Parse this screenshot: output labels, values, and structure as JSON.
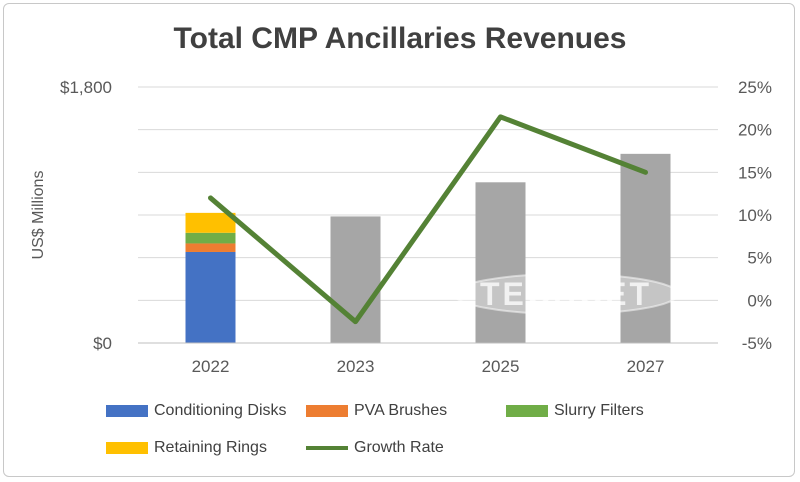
{
  "chart_data": {
    "type": "bar",
    "title": "Total CMP Ancillaries Revenues",
    "ylabel": "US$ Millions",
    "xlabel": "",
    "categories": [
      "2022",
      "2023",
      "2025",
      "2027"
    ],
    "ylim": [
      0,
      1800
    ],
    "y_tick_labels": [
      "$1,800",
      "$0"
    ],
    "y2lim": [
      -5,
      25
    ],
    "y2_tick_labels": [
      "25%",
      "20%",
      "15%",
      "10%",
      "5%",
      "0%",
      "-5%"
    ],
    "grid": true,
    "legend_position": "bottom",
    "watermark": "TECHCET",
    "series": [
      {
        "name": "Conditioning Disks",
        "kind": "bar",
        "stack": "main",
        "color": "#4472c4",
        "values": [
          640,
          null,
          null,
          null
        ]
      },
      {
        "name": "PVA Brushes",
        "kind": "bar",
        "stack": "main",
        "color": "#ed7d31",
        "values": [
          60,
          null,
          null,
          null
        ]
      },
      {
        "name": "Slurry Filters",
        "kind": "bar",
        "stack": "main",
        "color": "#70ad47",
        "values": [
          75,
          null,
          null,
          null
        ]
      },
      {
        "name": "Retaining Rings",
        "kind": "bar",
        "stack": "main",
        "color": "#ffc000",
        "values": [
          140,
          null,
          null,
          null
        ]
      },
      {
        "name": "",
        "kind": "bar",
        "stack": "main",
        "color": "#a6a6a6",
        "values": [
          null,
          890,
          1130,
          1330
        ]
      },
      {
        "name": "Growth Rate",
        "kind": "line",
        "axis": "right",
        "color": "#548235",
        "values": [
          12,
          -2.5,
          21.5,
          15
        ]
      }
    ],
    "totals": [
      915,
      890,
      1130,
      1330
    ]
  },
  "legend": [
    {
      "label": "Conditioning Disks",
      "color": "#4472c4",
      "type": "bar"
    },
    {
      "label": "PVA Brushes",
      "color": "#ed7d31",
      "type": "bar"
    },
    {
      "label": "Slurry Filters",
      "color": "#70ad47",
      "type": "bar"
    },
    {
      "label": "Retaining Rings",
      "color": "#ffc000",
      "type": "bar"
    },
    {
      "label": "Growth Rate",
      "color": "#548235",
      "type": "line"
    }
  ]
}
